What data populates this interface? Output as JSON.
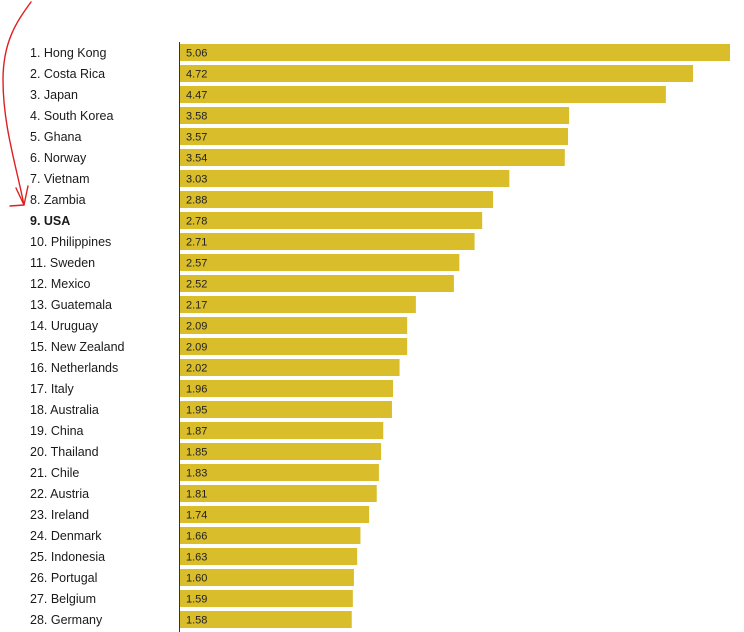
{
  "chart_data": {
    "type": "bar",
    "orientation": "horizontal",
    "categories": [
      "1. Hong Kong",
      "2. Costa Rica",
      "3. Japan",
      "4. South Korea",
      "5. Ghana",
      "6. Norway",
      "7. Vietnam",
      "8. Zambia",
      "9. USA",
      "10. Philippines",
      "11. Sweden",
      "12. Mexico",
      "13. Guatemala",
      "14. Uruguay",
      "15. New Zealand",
      "16. Netherlands",
      "17. Italy",
      "18. Australia",
      "19. China",
      "20. Thailand",
      "21. Chile",
      "22. Austria",
      "23. Ireland",
      "24. Denmark",
      "25. Indonesia",
      "26. Portugal",
      "27. Belgium",
      "28. Germany"
    ],
    "value_labels": [
      "5.06",
      "4.72",
      "4.47",
      "3.58",
      "3.57",
      "3.54",
      "3.03",
      "2.88",
      "2.78",
      "2.71",
      "2.57",
      "2.52",
      "2.17",
      "2.09",
      "2.09",
      "2.02",
      "1.96",
      "1.95",
      "1.87",
      "1.85",
      "1.83",
      "1.81",
      "1.74",
      "1.66",
      "1.63",
      "1.60",
      "1.59",
      "1.58"
    ],
    "values": [
      5.06,
      4.72,
      4.47,
      3.58,
      3.57,
      3.54,
      3.03,
      2.88,
      2.78,
      2.71,
      2.57,
      2.52,
      2.17,
      2.09,
      2.09,
      2.02,
      1.96,
      1.95,
      1.87,
      1.85,
      1.83,
      1.81,
      1.74,
      1.66,
      1.63,
      1.6,
      1.59,
      1.58
    ],
    "highlight_category": "9. USA",
    "xlim": [
      0,
      5.06
    ],
    "grid": false,
    "legend": "none",
    "title": "",
    "xlabel": "",
    "ylabel": "",
    "colors": {
      "bar": "#d9bd2b",
      "highlight_label": "#d9853b",
      "axis": "#333333",
      "annotation_arrow": "#e02020"
    },
    "annotations": [
      {
        "type": "hand-drawn-arrow",
        "points_to": "9. USA",
        "color": "#e02020"
      }
    ]
  }
}
